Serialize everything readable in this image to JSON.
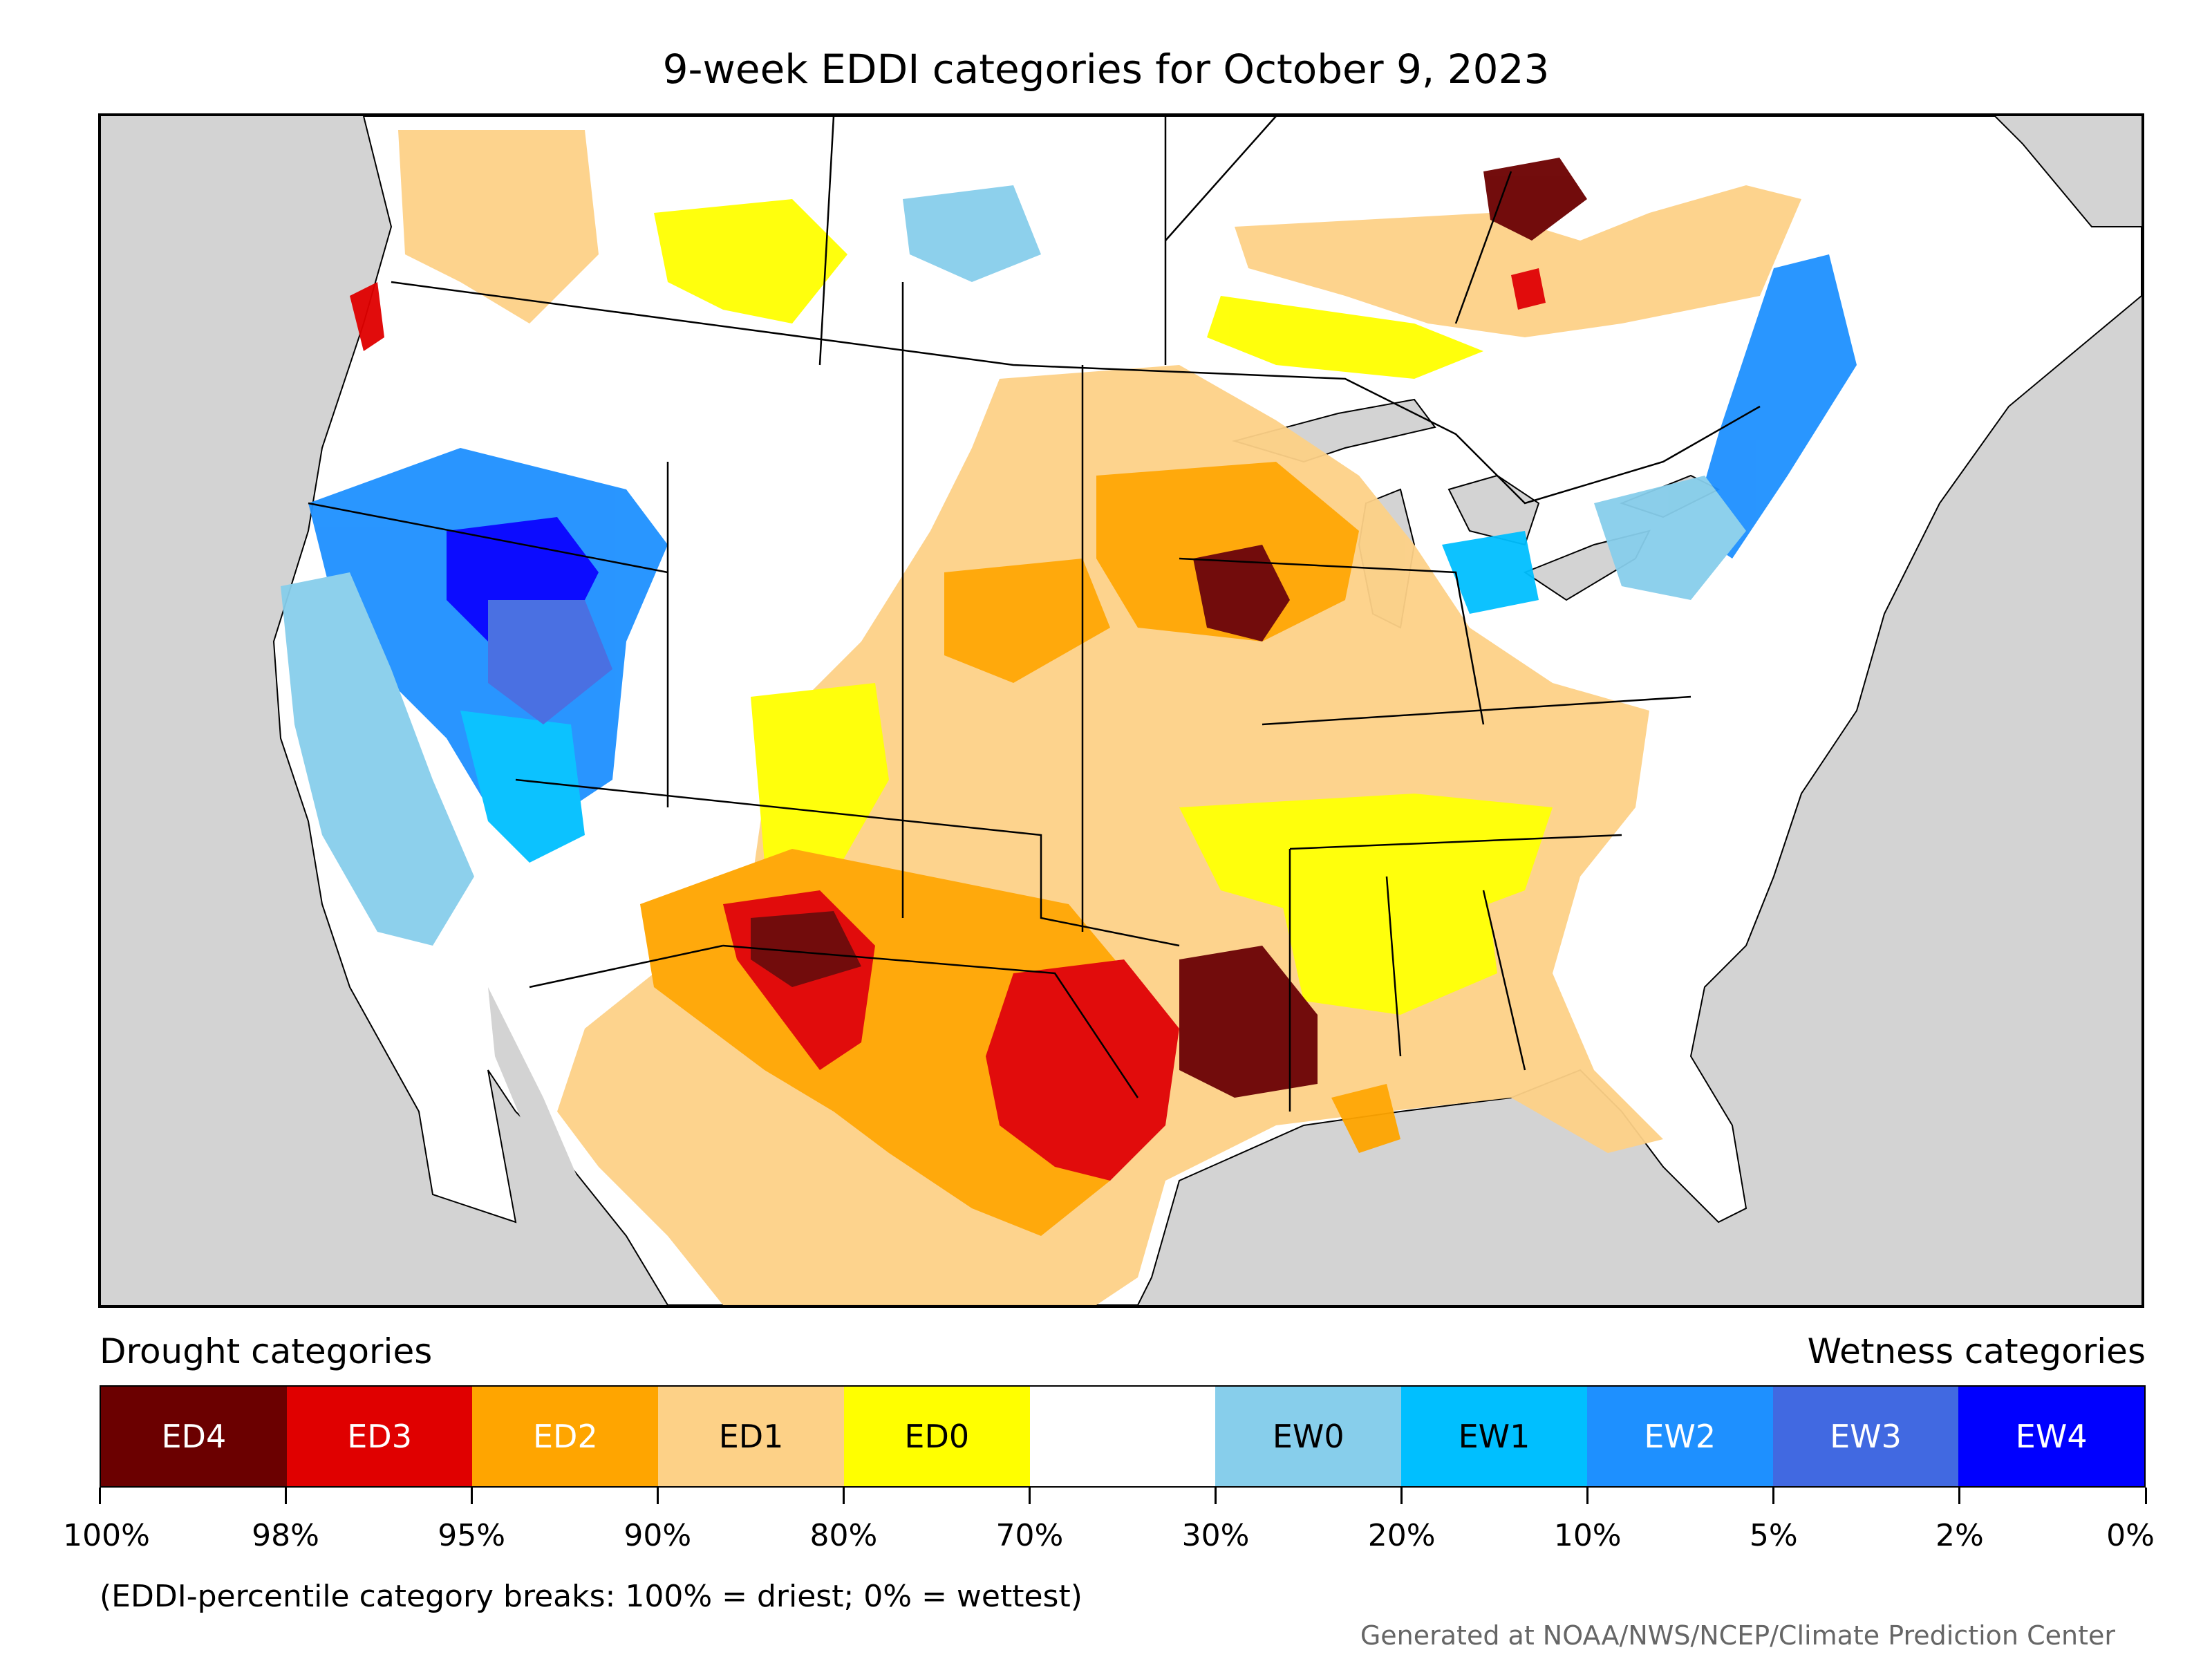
{
  "title": "9-week EDDI categories for October 9, 2023",
  "legend": {
    "drought_heading": "Drought categories",
    "wetness_heading": "Wetness categories",
    "categories": [
      {
        "label": "ED4",
        "color": "#6b0000",
        "text_color": "#ffffff"
      },
      {
        "label": "ED3",
        "color": "#e00000",
        "text_color": "#ffffff"
      },
      {
        "label": "ED2",
        "color": "#ffa500",
        "text_color": "#ffffff"
      },
      {
        "label": "ED1",
        "color": "#fdd187",
        "text_color": "#000000"
      },
      {
        "label": "ED0",
        "color": "#ffff00",
        "text_color": "#000000"
      },
      {
        "label": "",
        "color": "#ffffff",
        "text_color": "#000000"
      },
      {
        "label": "EW0",
        "color": "#87ceeb",
        "text_color": "#000000"
      },
      {
        "label": "EW1",
        "color": "#00bfff",
        "text_color": "#000000"
      },
      {
        "label": "EW2",
        "color": "#1e90ff",
        "text_color": "#ffffff"
      },
      {
        "label": "EW3",
        "color": "#4169e1",
        "text_color": "#ffffff"
      },
      {
        "label": "EW4",
        "color": "#0000ff",
        "text_color": "#ffffff"
      }
    ],
    "tick_labels": [
      "100%",
      "98%",
      "95%",
      "90%",
      "80%",
      "70%",
      "30%",
      "20%",
      "10%",
      "5%",
      "2%",
      "0%"
    ],
    "note": "(EDDI-percentile category breaks: 100% = driest; 0% = wettest)"
  },
  "credit": "Generated at NOAA/NWS/NCEP/Climate Prediction Center",
  "map_colors": {
    "background": "#d3d3d3",
    "land": "#ffffff",
    "border": "#000000"
  }
}
